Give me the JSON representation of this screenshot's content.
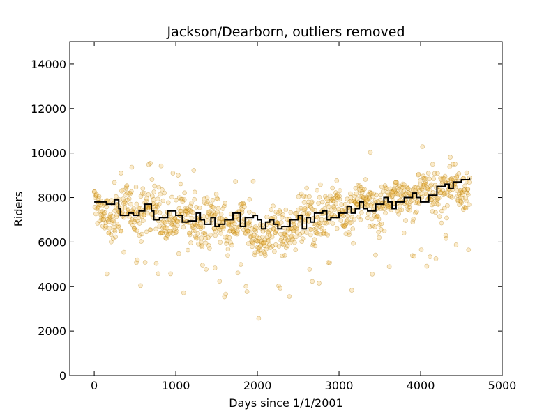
{
  "chart_data": {
    "type": "scatter",
    "title": "Jackson/Dearborn, outliers removed",
    "xlabel": "Days since 1/1/2001",
    "ylabel": "Riders",
    "xlim": [
      -300,
      5000
    ],
    "ylim": [
      0,
      15000
    ],
    "xticks": [
      0,
      1000,
      2000,
      3000,
      4000,
      5000
    ],
    "yticks": [
      0,
      2000,
      4000,
      6000,
      8000,
      10000,
      12000,
      14000
    ],
    "grid": false,
    "legend": "none",
    "point_color": "#f0b030",
    "point_edge_color": "#b07800",
    "line_color": "#000000",
    "series": [
      {
        "type": "scatter",
        "x_range": [
          0,
          4600
        ],
        "approx_center": [
          [
            0,
            7400
          ],
          [
            300,
            7200
          ],
          [
            600,
            7600
          ],
          [
            900,
            7100
          ],
          [
            1200,
            7000
          ],
          [
            1500,
            6800
          ],
          [
            1800,
            6700
          ],
          [
            2100,
            6300
          ],
          [
            2300,
            6400
          ],
          [
            2600,
            7100
          ],
          [
            2900,
            7300
          ],
          [
            3200,
            7600
          ],
          [
            3500,
            7800
          ],
          [
            3800,
            8000
          ],
          [
            4100,
            8300
          ],
          [
            4400,
            8500
          ],
          [
            4600,
            8700
          ]
        ]
      },
      {
        "type": "step",
        "points": [
          [
            0,
            7800
          ],
          [
            150,
            7700
          ],
          [
            250,
            7900
          ],
          [
            300,
            7500
          ],
          [
            320,
            7200
          ],
          [
            420,
            7300
          ],
          [
            480,
            7200
          ],
          [
            550,
            7400
          ],
          [
            620,
            7700
          ],
          [
            700,
            7400
          ],
          [
            730,
            7000
          ],
          [
            800,
            7100
          ],
          [
            900,
            7400
          ],
          [
            1000,
            7200
          ],
          [
            1080,
            6900
          ],
          [
            1150,
            6950
          ],
          [
            1250,
            7300
          ],
          [
            1300,
            7000
          ],
          [
            1350,
            6800
          ],
          [
            1430,
            7100
          ],
          [
            1480,
            6700
          ],
          [
            1530,
            6800
          ],
          [
            1600,
            7000
          ],
          [
            1700,
            7300
          ],
          [
            1790,
            6700
          ],
          [
            1850,
            7100
          ],
          [
            1950,
            7200
          ],
          [
            2000,
            7000
          ],
          [
            2050,
            6600
          ],
          [
            2100,
            6900
          ],
          [
            2150,
            7000
          ],
          [
            2200,
            6800
          ],
          [
            2250,
            6600
          ],
          [
            2300,
            6700
          ],
          [
            2400,
            7000
          ],
          [
            2500,
            7200
          ],
          [
            2550,
            6600
          ],
          [
            2600,
            7100
          ],
          [
            2650,
            6900
          ],
          [
            2700,
            7300
          ],
          [
            2800,
            7400
          ],
          [
            2850,
            7000
          ],
          [
            2900,
            7100
          ],
          [
            3000,
            7300
          ],
          [
            3100,
            7600
          ],
          [
            3150,
            7300
          ],
          [
            3200,
            7500
          ],
          [
            3250,
            7800
          ],
          [
            3300,
            7500
          ],
          [
            3350,
            7400
          ],
          [
            3450,
            7700
          ],
          [
            3550,
            8000
          ],
          [
            3600,
            7800
          ],
          [
            3650,
            7500
          ],
          [
            3700,
            7800
          ],
          [
            3800,
            8000
          ],
          [
            3900,
            8200
          ],
          [
            3950,
            8000
          ],
          [
            4000,
            7800
          ],
          [
            4100,
            8100
          ],
          [
            4200,
            8500
          ],
          [
            4300,
            8600
          ],
          [
            4350,
            8400
          ],
          [
            4400,
            8700
          ],
          [
            4500,
            8800
          ],
          [
            4600,
            8900
          ]
        ]
      }
    ]
  }
}
